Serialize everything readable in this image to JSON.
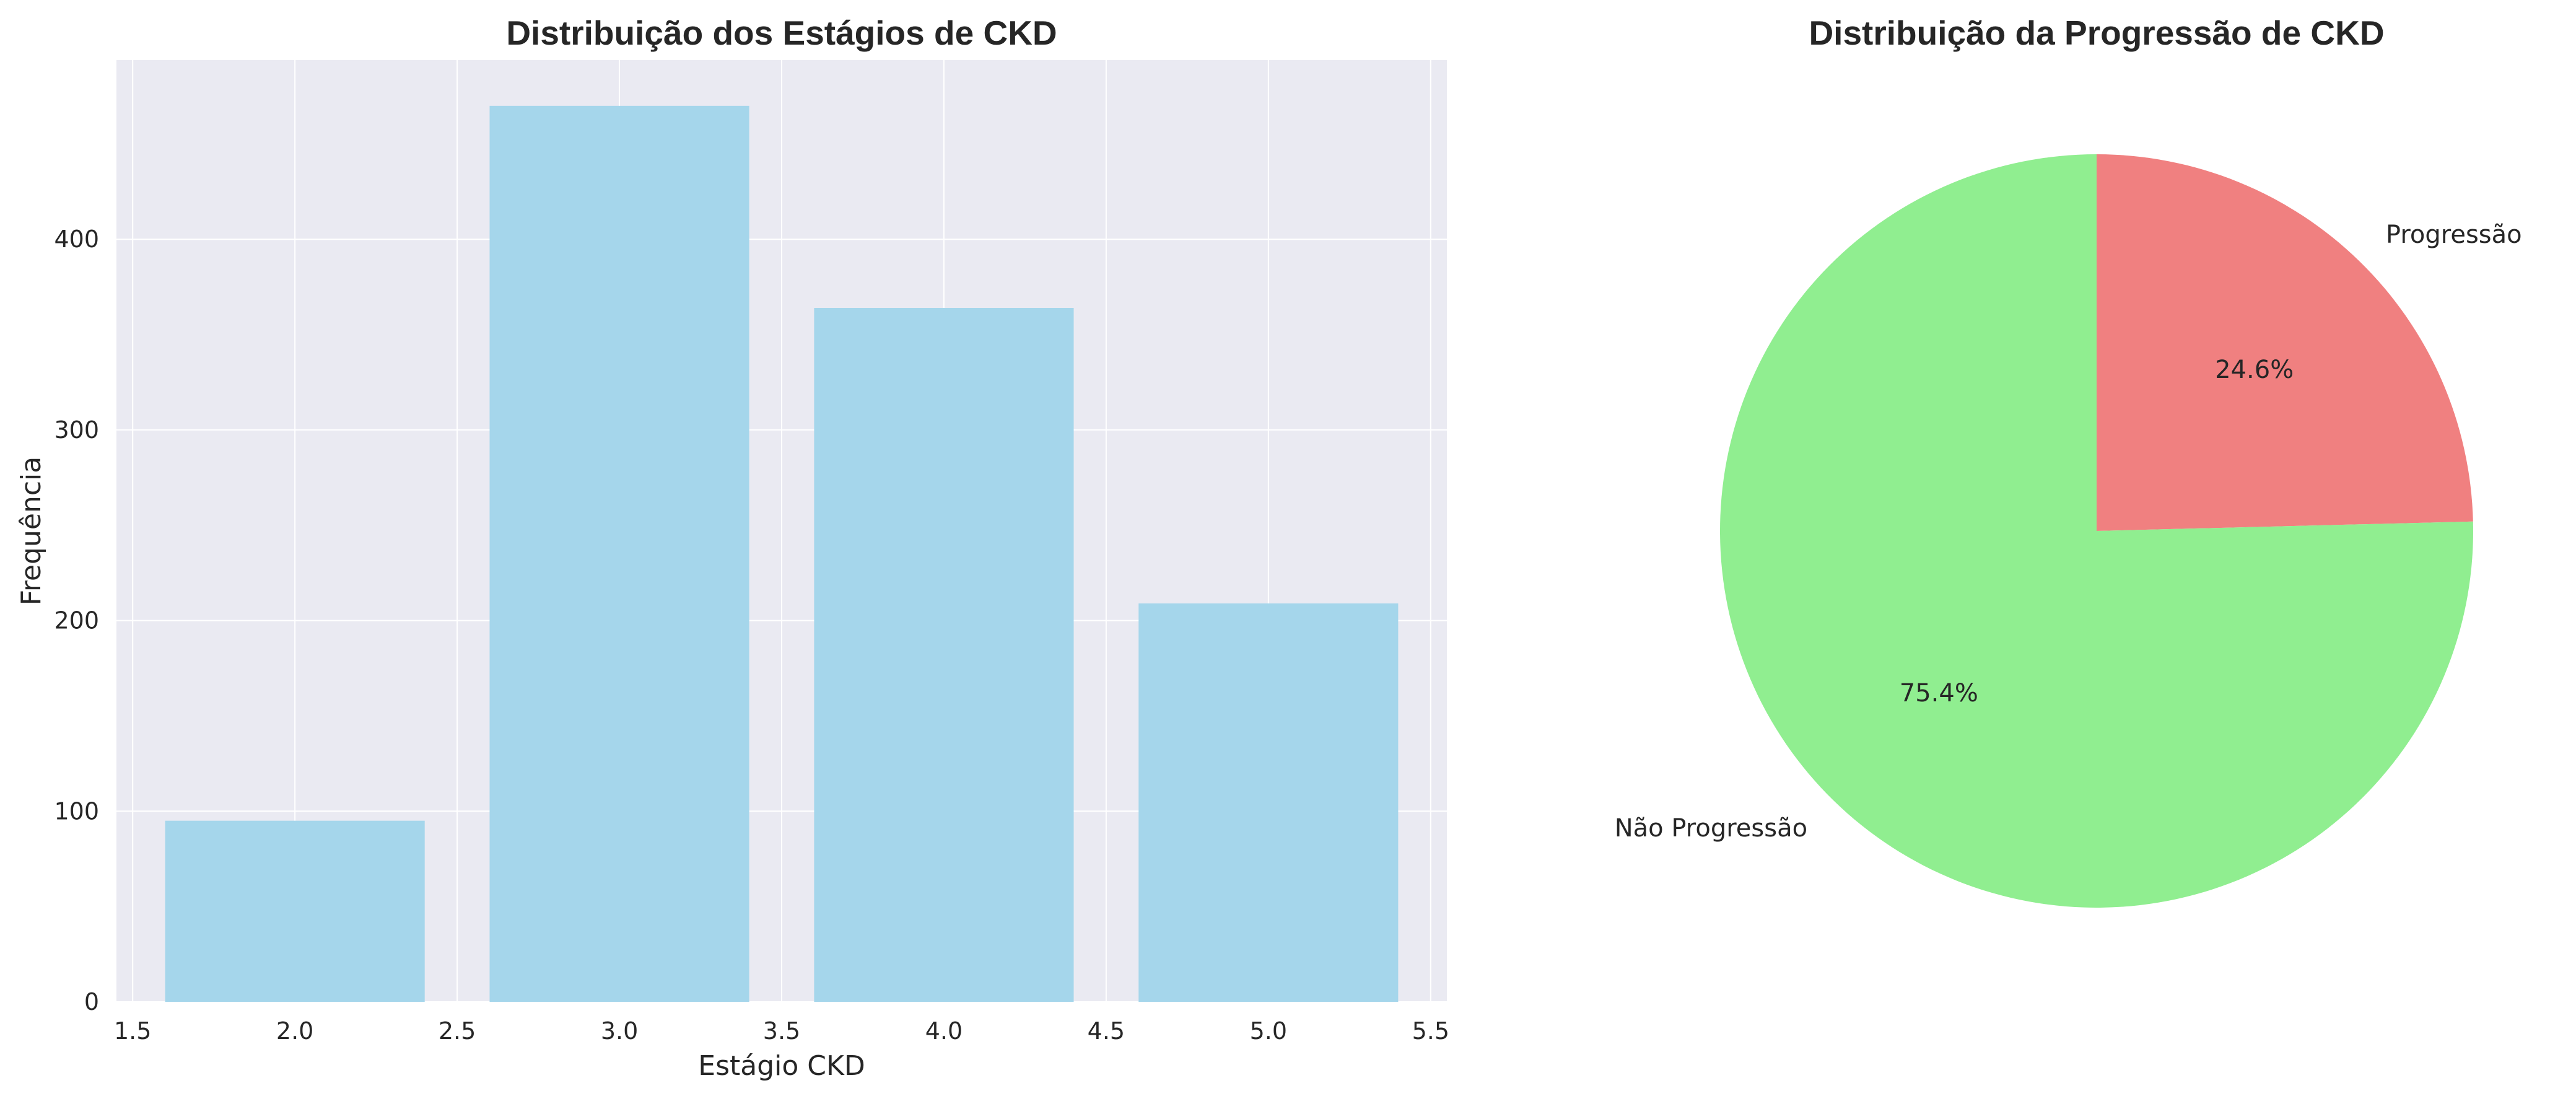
{
  "chart_data": [
    {
      "type": "bar",
      "title": "Distribuição dos Estágios de CKD",
      "xlabel": "Estágio CKD",
      "ylabel": "Frequência",
      "x": [
        2.0,
        3.0,
        4.0,
        5.0
      ],
      "values": [
        95,
        470,
        364,
        209
      ],
      "bar_width": 0.8,
      "xlim": [
        1.45,
        5.55
      ],
      "ylim": [
        0,
        494
      ],
      "xticks": [
        1.5,
        2.0,
        2.5,
        3.0,
        3.5,
        4.0,
        4.5,
        5.0,
        5.5
      ],
      "xtick_labels": [
        "1.5",
        "2.0",
        "2.5",
        "3.0",
        "3.5",
        "4.0",
        "4.5",
        "5.0",
        "5.5"
      ],
      "yticks": [
        0,
        100,
        200,
        300,
        400
      ],
      "ytick_labels": [
        "0",
        "100",
        "200",
        "300",
        "400"
      ],
      "grid": true,
      "colors": {
        "bar": "#a5d6eb",
        "background": "#eaeaf2",
        "grid": "#ffffff"
      }
    },
    {
      "type": "pie",
      "title": "Distribuição da Progressão de CKD",
      "labels": [
        "Progressão",
        "Não Progressão"
      ],
      "values": [
        24.6,
        75.4
      ],
      "pct_labels": [
        "24.6%",
        "75.4%"
      ],
      "start_angle": 90,
      "direction": "clockwise",
      "colors": [
        "#f08080",
        "#90ee90"
      ]
    }
  ]
}
